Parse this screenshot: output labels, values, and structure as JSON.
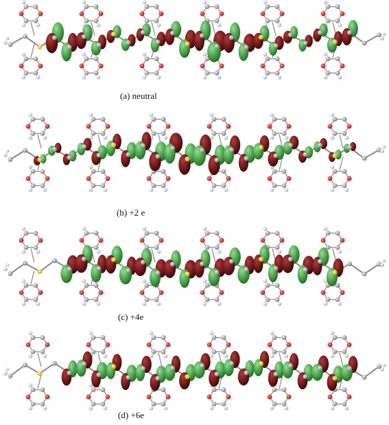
{
  "panels": [
    {
      "caption": "(a) neutral"
    },
    {
      "caption": "(b) +2 e"
    },
    {
      "caption": "(c) +4e"
    },
    {
      "caption": "(d) +6e"
    }
  ]
}
